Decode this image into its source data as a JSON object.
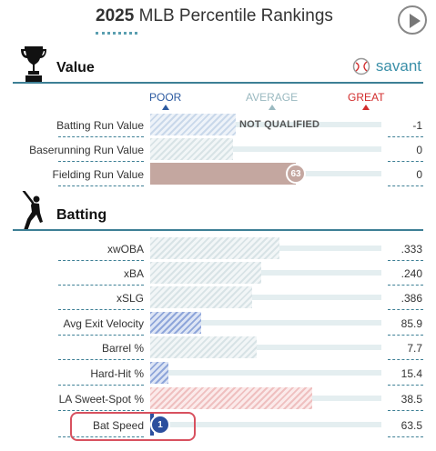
{
  "header": {
    "year": "2025",
    "title": "MLB Percentile Rankings"
  },
  "sections": {
    "value": {
      "title": "Value",
      "savant_label": "savant"
    },
    "batting": {
      "title": "Batting"
    }
  },
  "legend": {
    "poor": "POOR",
    "average": "AVERAGE",
    "great": "GREAT"
  },
  "colors": {
    "poor": "#2c5aa0",
    "average": "#9ab9c0",
    "great": "#d22d2d",
    "accent": "#3d7f95",
    "highlight": "#d8515f"
  },
  "value_rows": [
    {
      "label": "Batting Run Value",
      "value": "-1",
      "status": "NOT QUALIFIED",
      "fill_fraction": 0.37,
      "style": "hatch-blue-light"
    },
    {
      "label": "Baserunning Run Value",
      "value": "0",
      "fill_fraction": 0.36,
      "style": "hatch-grey"
    },
    {
      "label": "Fielding Run Value",
      "value": "0",
      "percentile": "63",
      "fill_fraction": 0.63,
      "style": "solid-brown"
    }
  ],
  "batting_rows": [
    {
      "label": "xwOBA",
      "value": ".333",
      "fill_fraction": 0.56,
      "style": "hatch-grey"
    },
    {
      "label": "xBA",
      "value": ".240",
      "fill_fraction": 0.48,
      "style": "hatch-grey"
    },
    {
      "label": "xSLG",
      "value": ".386",
      "fill_fraction": 0.44,
      "style": "hatch-grey"
    },
    {
      "label": "Avg Exit Velocity",
      "value": "85.9",
      "fill_fraction": 0.22,
      "style": "hatch-blue"
    },
    {
      "label": "Barrel %",
      "value": "7.7",
      "fill_fraction": 0.46,
      "style": "hatch-grey"
    },
    {
      "label": "Hard-Hit %",
      "value": "15.4",
      "fill_fraction": 0.08,
      "style": "hatch-blue"
    },
    {
      "label": "LA Sweet-Spot %",
      "value": "38.5",
      "fill_fraction": 0.7,
      "style": "hatch-pink"
    },
    {
      "label": "Bat Speed",
      "value": "63.5",
      "percentile": "1",
      "fill_fraction": 0.01,
      "style": "solid-blue"
    }
  ]
}
